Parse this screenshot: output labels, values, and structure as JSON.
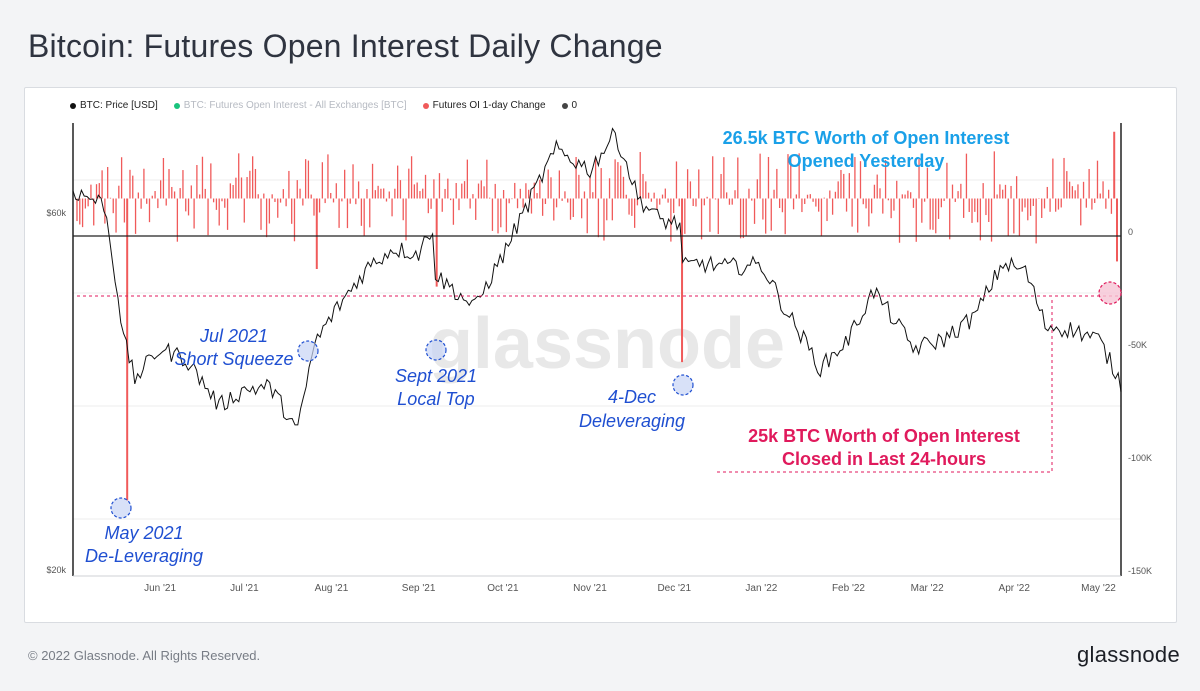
{
  "page": {
    "title": "Bitcoin: Futures Open Interest Daily Change",
    "copyright": "© 2022 Glassnode. All Rights Reserved.",
    "logo": "glassnode",
    "watermark": "glassnode"
  },
  "legend": [
    {
      "label": "BTC: Price [USD]",
      "color": "#111111",
      "dim": false
    },
    {
      "label": "BTC: Futures Open Interest - All Exchanges [BTC]",
      "color": "#19c37d",
      "dim": true
    },
    {
      "label": "Futures OI 1-day Change",
      "color": "#f05a5a",
      "dim": false
    },
    {
      "label": "0",
      "color": "#444444",
      "dim": false
    }
  ],
  "annotations": {
    "may_l1": "May 2021",
    "may_l2": "De-Leveraging",
    "jul_l1": "Jul 2021",
    "jul_l2": "Short Squeeze",
    "sep_l1": "Sept 2021",
    "sep_l2": "Local Top",
    "dec_l1": "4-Dec",
    "dec_l2": "Deleveraging",
    "opened_l1": "26.5k BTC Worth of Open Interest",
    "opened_l2": "Opened Yesterday",
    "closed_l1": "25k BTC Worth of Open Interest",
    "closed_l2": "Closed in Last 24-hours"
  },
  "colors": {
    "oi_change": "#f05a5a",
    "price": "#111111",
    "annotation_blue": "#1f4fd1",
    "opened_text": "#1aa0e8",
    "closed_text": "#e01a5c"
  },
  "chart_data": {
    "type": "line",
    "x_range": [
      "2021-05-01",
      "2022-05-09"
    ],
    "x_ticks": [
      "Jun '21",
      "Jul '21",
      "Aug '21",
      "Sep '21",
      "Oct '21",
      "Nov '21",
      "Dec '21",
      "Jan '22",
      "Feb '22",
      "Mar '22",
      "Apr '22",
      "May '22"
    ],
    "y_left": {
      "label": "",
      "scale": "log",
      "ticks": [
        "$60k",
        "$20k"
      ],
      "range": [
        20000,
        70000
      ]
    },
    "y_right": {
      "label": "",
      "ticks": [
        "0",
        "-50K",
        "-100K",
        "-150K"
      ],
      "range": [
        -150000,
        30000
      ]
    },
    "series": [
      {
        "name": "BTC: Price [USD]",
        "axis": "left",
        "x": [
          "2021-05-01",
          "2021-05-12",
          "2021-05-19",
          "2021-05-23",
          "2021-06-01",
          "2021-06-10",
          "2021-06-22",
          "2021-07-01",
          "2021-07-10",
          "2021-07-20",
          "2021-07-26",
          "2021-08-01",
          "2021-08-14",
          "2021-08-23",
          "2021-09-01",
          "2021-09-06",
          "2021-09-07",
          "2021-09-21",
          "2021-10-01",
          "2021-10-10",
          "2021-10-20",
          "2021-11-01",
          "2021-11-10",
          "2021-11-18",
          "2021-11-26",
          "2021-12-03",
          "2021-12-04",
          "2021-12-10",
          "2021-12-20",
          "2022-01-01",
          "2022-01-10",
          "2022-01-22",
          "2022-02-01",
          "2022-02-10",
          "2022-02-24",
          "2022-03-07",
          "2022-03-18",
          "2022-03-28",
          "2022-04-05",
          "2022-04-12",
          "2022-04-22",
          "2022-05-01",
          "2022-05-09"
        ],
        "y": [
          58000,
          56000,
          38500,
          34500,
          37500,
          36500,
          32000,
          33500,
          33800,
          29800,
          38000,
          41000,
          47000,
          49500,
          48800,
          52500,
          46000,
          42000,
          48500,
          56000,
          65000,
          61500,
          68000,
          57000,
          53500,
          53000,
          47000,
          47500,
          47000,
          47300,
          41500,
          35500,
          38500,
          44000,
          37500,
          38500,
          41000,
          47500,
          46500,
          40000,
          39500,
          38500,
          34000
        ]
      },
      {
        "name": "Futures OI 1-day Change",
        "axis": "right",
        "type": "bar",
        "x": [
          "2021-05-19",
          "2021-07-26",
          "2021-09-07",
          "2021-12-04",
          "2022-05-08",
          "2022-05-09"
        ],
        "y": [
          -120000,
          -28000,
          -35000,
          -65000,
          26500,
          -25000
        ]
      }
    ]
  }
}
